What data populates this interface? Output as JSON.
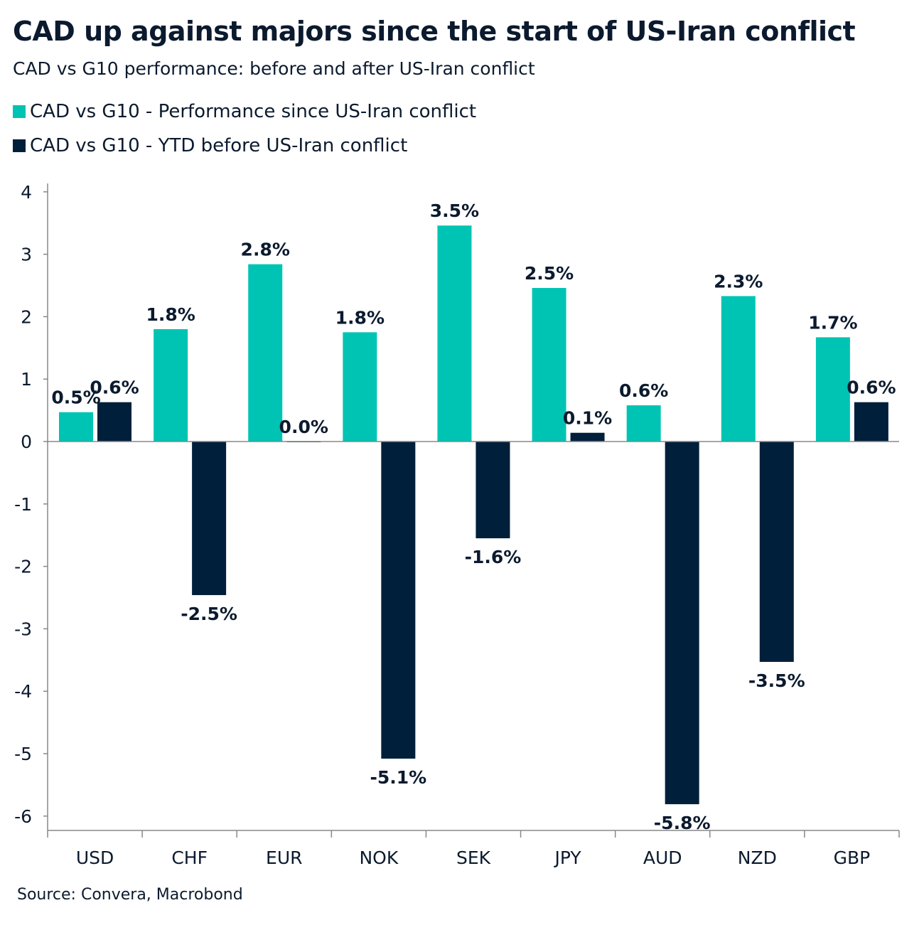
{
  "chart_data": {
    "type": "bar",
    "title": "CAD up against majors since the start of US-Iran conflict",
    "subtitle": "CAD vs G10 performance: before and after US-Iran conflict",
    "source": "Source: Convera, Macrobond",
    "categories": [
      "USD",
      "CHF",
      "EUR",
      "NOK",
      "SEK",
      "JPY",
      "AUD",
      "NZD",
      "GBP"
    ],
    "series": [
      {
        "name": "CAD vs G10 - Performance since US-Iran conflict",
        "color": "#00C4B3",
        "values": [
          0.47,
          1.8,
          2.84,
          1.75,
          3.46,
          2.46,
          0.58,
          2.33,
          1.67
        ],
        "labels": [
          "0.5%",
          "1.8%",
          "2.8%",
          "1.8%",
          "3.5%",
          "2.5%",
          "0.6%",
          "2.3%",
          "1.7%"
        ]
      },
      {
        "name": "CAD vs G10 - YTD before US-Iran conflict",
        "color": "#001F3A",
        "values": [
          0.63,
          -2.46,
          0.0,
          -5.08,
          -1.55,
          0.14,
          -5.81,
          -3.53,
          0.63
        ],
        "labels": [
          "0.6%",
          "-2.5%",
          "0.0%",
          "-5.1%",
          "-1.6%",
          "0.1%",
          "-5.8%",
          "-3.5%",
          "0.6%"
        ]
      }
    ],
    "ylim": [
      -6.25,
      4.2
    ],
    "yticks": [
      "4",
      "3",
      "2",
      "1",
      "0",
      "-1",
      "-2",
      "-3",
      "-4",
      "-5",
      "-6"
    ],
    "ytick_values": [
      4,
      3,
      2,
      1,
      0,
      -1,
      -2,
      -3,
      -4,
      -5,
      -6
    ],
    "grid": false,
    "legend": "top-left"
  }
}
